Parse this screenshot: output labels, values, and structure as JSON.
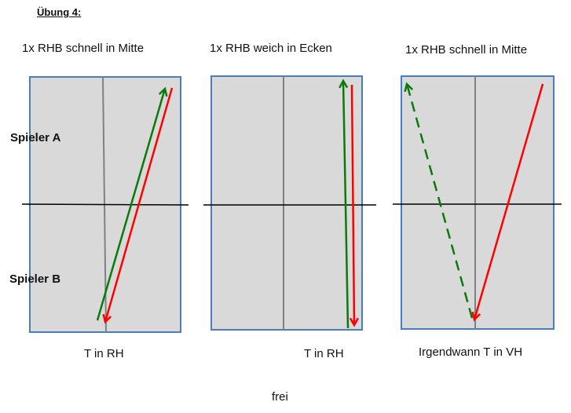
{
  "heading": "Übung 4:",
  "players": {
    "a": "Spieler A",
    "b": "Spieler B"
  },
  "panels": [
    {
      "title": "1x RHB schnell in Mitte",
      "bottom_label": "T in RH"
    },
    {
      "title": "1x RHB weich in Ecken",
      "bottom_label": "T in RH"
    },
    {
      "title": "1x RHB schnell in Mitte",
      "bottom_label": "Irgendwann T in VH"
    }
  ],
  "footer": "frei",
  "colors": {
    "table_fill": "#d9d9d9",
    "table_border": "#4a7ebb",
    "center_line": "#808080",
    "net": "#000000",
    "green_arrow": "#0a7a0a",
    "red_arrow": "#ff0000"
  }
}
